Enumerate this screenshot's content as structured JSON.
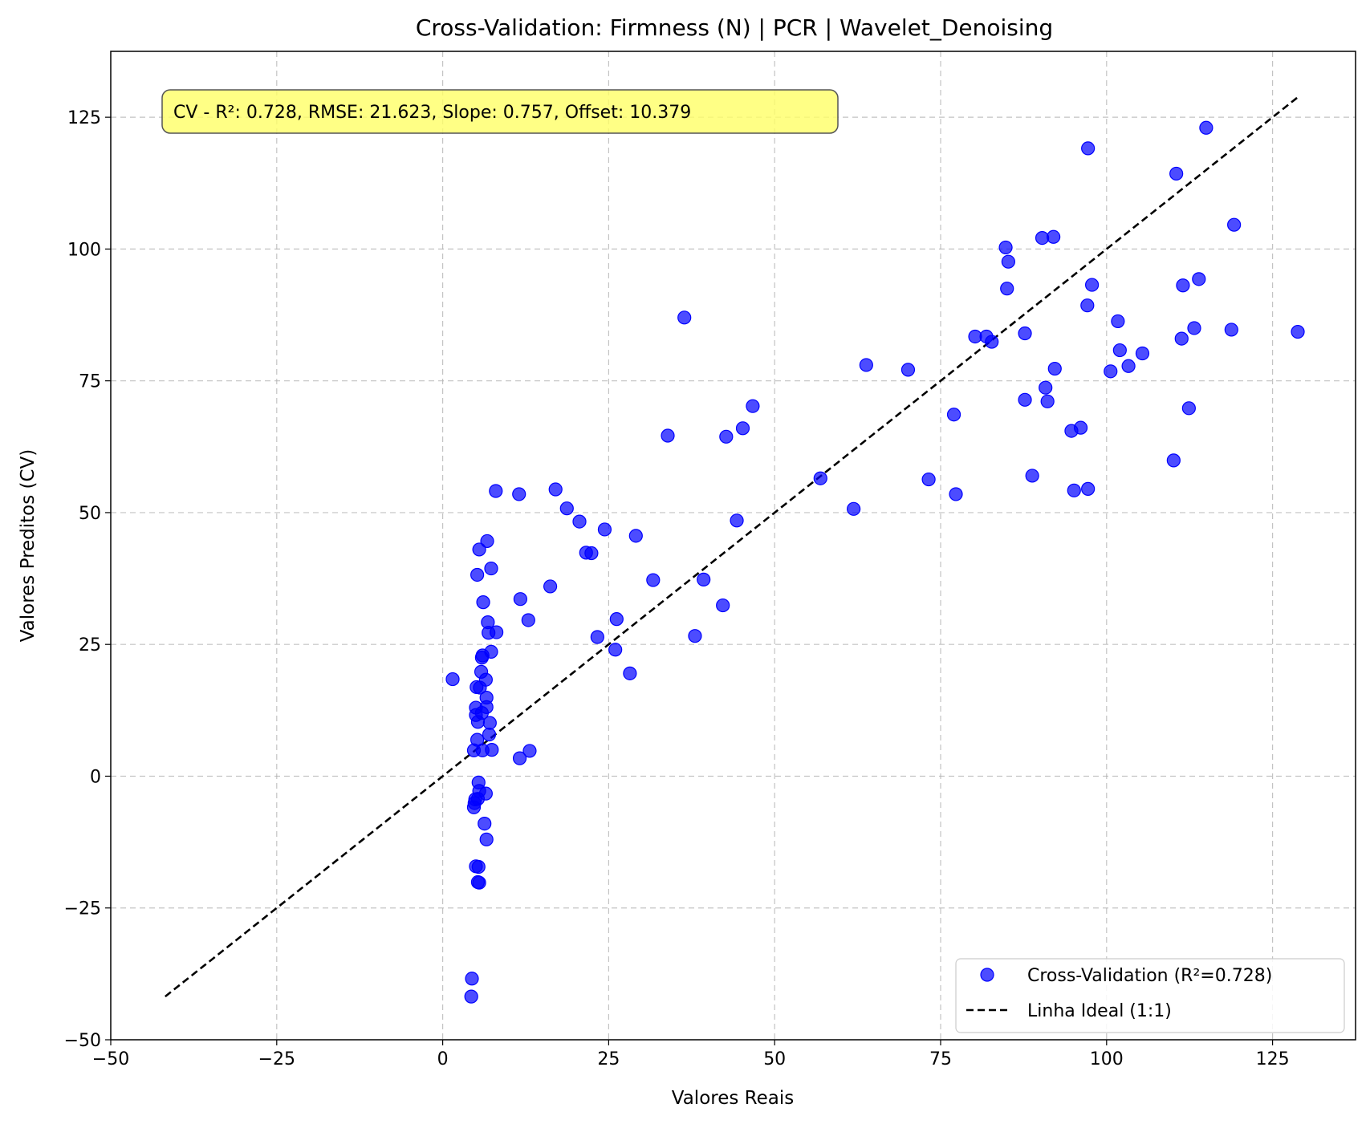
{
  "chart_data": {
    "type": "scatter",
    "title": "Cross-Validation: Firmness (N) | PCR | Wavelet_Denoising",
    "xlabel": "Valores Reais",
    "ylabel": "Valores Preditos (CV)",
    "xlim": [
      -50,
      137.5
    ],
    "ylim": [
      -50,
      137.5
    ],
    "xticks": [
      -50,
      -25,
      0,
      25,
      50,
      75,
      100,
      125
    ],
    "yticks": [
      -50,
      -25,
      0,
      25,
      50,
      75,
      100,
      125
    ],
    "xtick_labels": [
      "−50",
      "−25",
      "0",
      "25",
      "50",
      "75",
      "100",
      "125"
    ],
    "ytick_labels": [
      "−50",
      "−25",
      "0",
      "25",
      "50",
      "75",
      "100",
      "125"
    ],
    "grid": true,
    "legend_position": "bottom-right",
    "annotation": "CV - R²: 0.728, RMSE: 21.623, Slope: 0.757, Offset: 10.379",
    "colors": {
      "points": "#0000ff",
      "ideal_line": "#000000",
      "annotation_bg": "#ffff66",
      "annotation_border": "#777777"
    },
    "series": [
      {
        "name": "Cross-Validation (R²=0.728)",
        "type": "scatter",
        "points": [
          [
            1.5,
            18.4
          ],
          [
            4.3,
            -41.8
          ],
          [
            4.4,
            -38.4
          ],
          [
            4.7,
            -5.9
          ],
          [
            4.8,
            -5.1
          ],
          [
            4.9,
            -4.4
          ],
          [
            5.0,
            13.0
          ],
          [
            4.7,
            4.9
          ],
          [
            5.2,
            6.9
          ],
          [
            5.0,
            11.6
          ],
          [
            5.3,
            10.3
          ],
          [
            5.1,
            16.9
          ],
          [
            5.2,
            38.2
          ],
          [
            5.5,
            43.0
          ],
          [
            5.6,
            16.8
          ],
          [
            5.8,
            19.8
          ],
          [
            5.9,
            22.5
          ],
          [
            6.0,
            22.9
          ],
          [
            6.1,
            33.0
          ],
          [
            5.9,
            12.0
          ],
          [
            6.0,
            4.9
          ],
          [
            5.4,
            -1.2
          ],
          [
            5.5,
            -2.8
          ],
          [
            5.3,
            -4.3
          ],
          [
            6.3,
            -9.0
          ],
          [
            6.5,
            -3.3
          ],
          [
            6.6,
            -12.0
          ],
          [
            5.0,
            -17.1
          ],
          [
            5.4,
            -17.2
          ],
          [
            5.3,
            -20.1
          ],
          [
            5.5,
            -20.2
          ],
          [
            6.5,
            18.3
          ],
          [
            6.6,
            14.9
          ],
          [
            6.6,
            13.1
          ],
          [
            6.8,
            29.2
          ],
          [
            6.9,
            27.2
          ],
          [
            6.7,
            44.6
          ],
          [
            7.3,
            39.4
          ],
          [
            7.3,
            23.6
          ],
          [
            7.1,
            10.1
          ],
          [
            7.0,
            7.9
          ],
          [
            7.4,
            5.0
          ],
          [
            8.1,
            27.3
          ],
          [
            8.0,
            54.1
          ],
          [
            11.5,
            53.5
          ],
          [
            11.7,
            33.6
          ],
          [
            11.6,
            3.4
          ],
          [
            13.1,
            4.8
          ],
          [
            12.9,
            29.6
          ],
          [
            16.2,
            36.0
          ],
          [
            17.0,
            54.4
          ],
          [
            18.7,
            50.8
          ],
          [
            20.6,
            48.3
          ],
          [
            21.6,
            42.4
          ],
          [
            22.4,
            42.3
          ],
          [
            23.3,
            26.4
          ],
          [
            24.4,
            46.8
          ],
          [
            26.0,
            24.0
          ],
          [
            26.2,
            29.8
          ],
          [
            28.2,
            19.5
          ],
          [
            29.1,
            45.6
          ],
          [
            31.7,
            37.2
          ],
          [
            33.9,
            64.6
          ],
          [
            36.4,
            87.0
          ],
          [
            38.0,
            26.6
          ],
          [
            39.3,
            37.3
          ],
          [
            42.2,
            32.4
          ],
          [
            42.7,
            64.4
          ],
          [
            44.3,
            48.5
          ],
          [
            45.2,
            66.0
          ],
          [
            46.7,
            70.2
          ],
          [
            56.9,
            56.5
          ],
          [
            61.9,
            50.7
          ],
          [
            63.8,
            78.0
          ],
          [
            70.1,
            77.1
          ],
          [
            73.2,
            56.3
          ],
          [
            77.0,
            68.6
          ],
          [
            77.3,
            53.5
          ],
          [
            80.2,
            83.4
          ],
          [
            81.9,
            83.4
          ],
          [
            82.7,
            82.4
          ],
          [
            84.8,
            100.3
          ],
          [
            85.0,
            92.5
          ],
          [
            85.2,
            97.6
          ],
          [
            87.7,
            84.0
          ],
          [
            87.7,
            71.4
          ],
          [
            88.8,
            57.0
          ],
          [
            90.3,
            102.1
          ],
          [
            90.8,
            73.7
          ],
          [
            91.1,
            71.1
          ],
          [
            92.0,
            102.3
          ],
          [
            92.2,
            77.3
          ],
          [
            94.7,
            65.5
          ],
          [
            95.1,
            54.2
          ],
          [
            96.1,
            66.1
          ],
          [
            97.1,
            89.3
          ],
          [
            97.2,
            54.5
          ],
          [
            97.2,
            119.1
          ],
          [
            97.8,
            93.2
          ],
          [
            100.6,
            76.8
          ],
          [
            101.7,
            86.3
          ],
          [
            102.0,
            80.8
          ],
          [
            103.3,
            77.8
          ],
          [
            105.4,
            80.2
          ],
          [
            110.1,
            59.9
          ],
          [
            110.5,
            114.3
          ],
          [
            111.3,
            83.0
          ],
          [
            111.5,
            93.1
          ],
          [
            112.4,
            69.8
          ],
          [
            113.2,
            85.0
          ],
          [
            113.9,
            94.3
          ],
          [
            115.0,
            123.0
          ],
          [
            118.8,
            84.7
          ],
          [
            119.2,
            104.6
          ],
          [
            128.8,
            84.3
          ]
        ]
      },
      {
        "name": "Linha Ideal (1:1)",
        "type": "line",
        "style": "dashed",
        "points": [
          [
            -41.8,
            -41.8
          ],
          [
            128.8,
            128.8
          ]
        ]
      }
    ]
  }
}
